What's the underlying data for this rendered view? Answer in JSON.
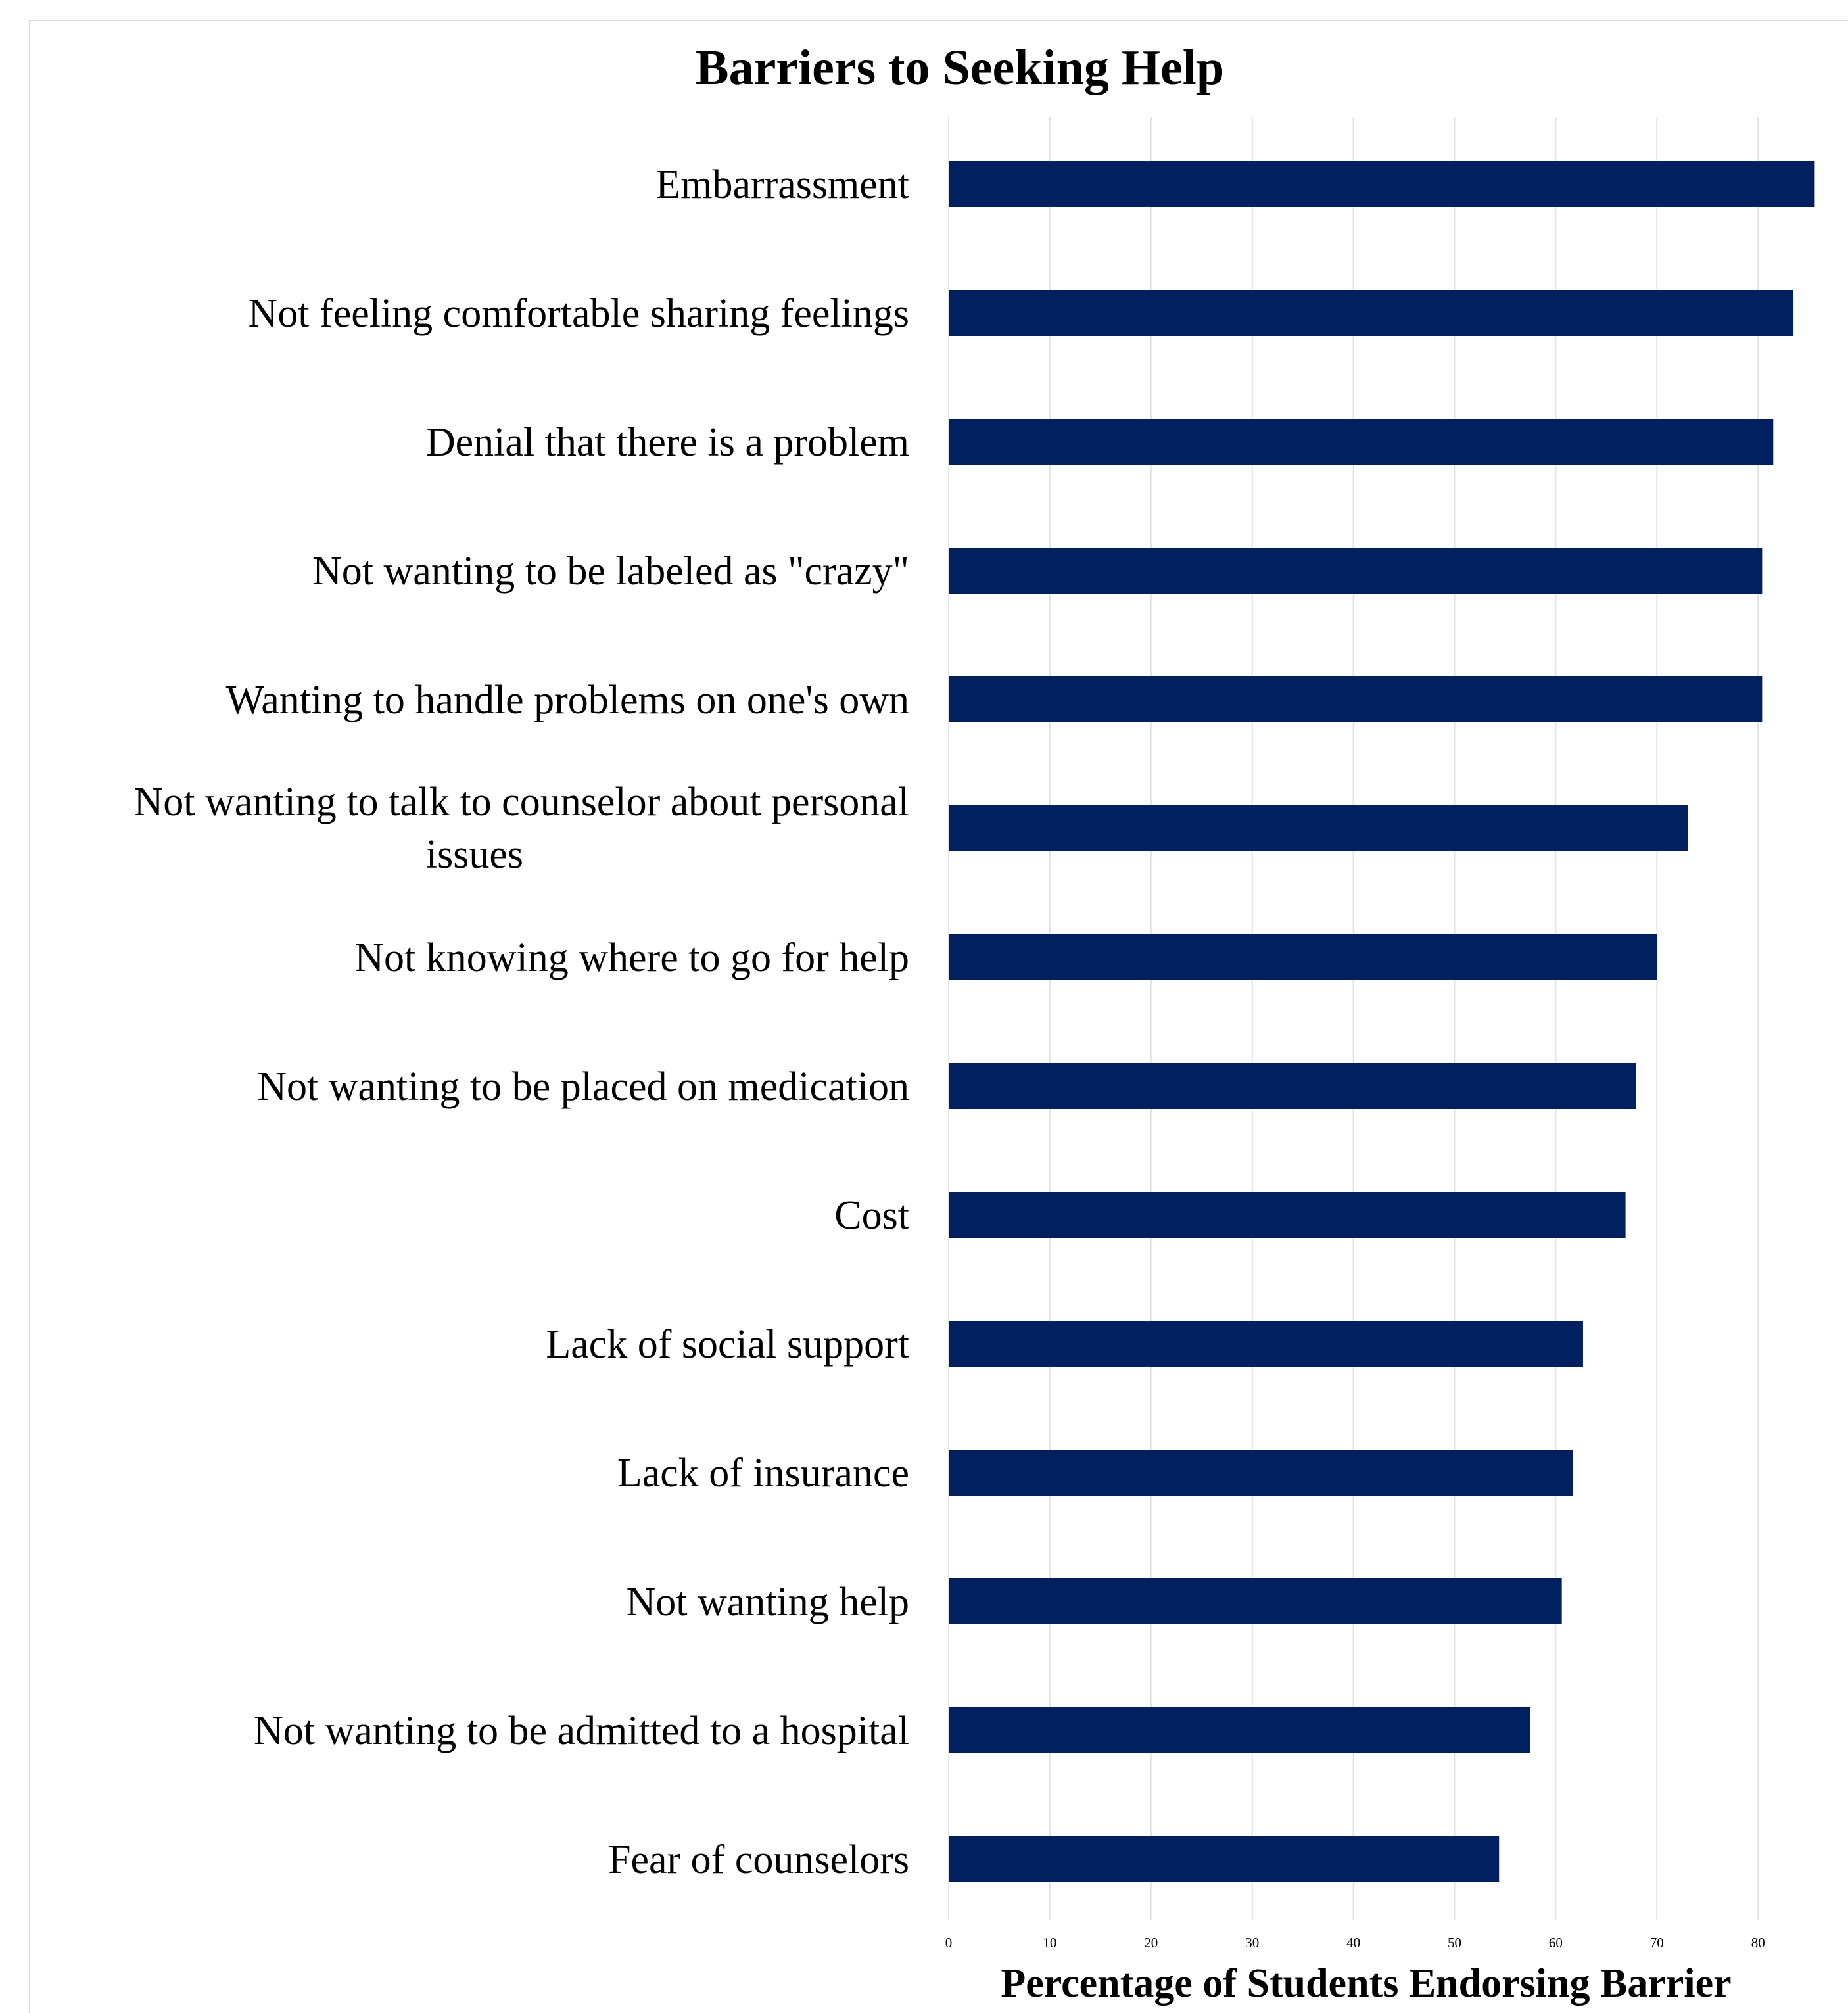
{
  "chart_data": {
    "type": "bar",
    "orientation": "horizontal",
    "title": "Barriers to Seeking Help",
    "xlabel": "Percentage of Students Endorsing Barrier",
    "ylabel": "",
    "xlim": [
      0,
      90
    ],
    "xticks": [
      0,
      10,
      20,
      30,
      40,
      50,
      60,
      70,
      80
    ],
    "grid": true,
    "bar_color": "#002060",
    "categories": [
      "Embarrassment",
      "Not feeling comfortable sharing feelings",
      "Denial that there is a problem",
      "Not wanting to be labeled as \"crazy\"",
      "Wanting to handle problems on one's own",
      "Not wanting to talk to counselor about personal issues",
      "Not knowing where to go for help",
      "Not wanting to be placed on medication",
      "Cost",
      "Lack of social support",
      "Lack of insurance",
      "Not wanting help",
      "Not wanting to be admitted to a hospital",
      "Fear of counselors"
    ],
    "values": [
      85.6,
      83.5,
      81.5,
      80.4,
      80.4,
      73.1,
      70.0,
      67.9,
      66.9,
      62.7,
      61.7,
      60.6,
      57.5,
      54.4
    ]
  }
}
